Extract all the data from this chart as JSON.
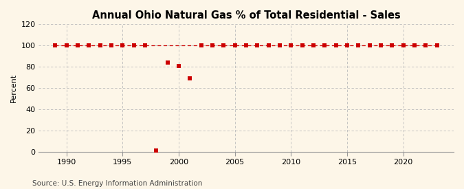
{
  "title": "Annual Ohio Natural Gas % of Total Residential - Sales",
  "ylabel": "Percent",
  "source": "Source: U.S. Energy Information Administration",
  "background_color": "#fdf6e8",
  "marker_color": "#cc0000",
  "grid_color": "#bbbbbb",
  "xlim": [
    1987.5,
    2024.5
  ],
  "ylim": [
    0,
    120
  ],
  "yticks": [
    0,
    20,
    40,
    60,
    80,
    100,
    120
  ],
  "xticks": [
    1990,
    1995,
    2000,
    2005,
    2010,
    2015,
    2020
  ],
  "years": [
    1989,
    1990,
    1991,
    1992,
    1993,
    1994,
    1995,
    1996,
    1997,
    1998,
    1999,
    2000,
    2001,
    2002,
    2003,
    2004,
    2005,
    2006,
    2007,
    2008,
    2009,
    2010,
    2011,
    2012,
    2013,
    2014,
    2015,
    2016,
    2017,
    2018,
    2019,
    2020,
    2021,
    2022,
    2023
  ],
  "values": [
    100,
    100,
    100,
    100,
    100,
    100,
    100,
    100,
    100,
    1,
    84,
    81,
    69,
    100,
    100,
    100,
    100,
    100,
    100,
    100,
    100,
    100,
    100,
    100,
    100,
    100,
    100,
    100,
    100,
    100,
    100,
    100,
    100,
    100,
    100
  ],
  "line_years": [
    1989,
    1990,
    1991,
    1992,
    1993,
    1994,
    1995,
    1996,
    1997,
    2002,
    2003,
    2004,
    2005,
    2006,
    2007,
    2008,
    2009,
    2010,
    2011,
    2012,
    2013,
    2014,
    2015,
    2016,
    2017,
    2018,
    2019,
    2020,
    2021,
    2022,
    2023
  ],
  "line_values": [
    100,
    100,
    100,
    100,
    100,
    100,
    100,
    100,
    100,
    100,
    100,
    100,
    100,
    100,
    100,
    100,
    100,
    100,
    100,
    100,
    100,
    100,
    100,
    100,
    100,
    100,
    100,
    100,
    100,
    100,
    100
  ],
  "outlier_years": [
    1998,
    1999,
    2000,
    2001
  ],
  "outlier_values": [
    1,
    84,
    81,
    69
  ],
  "title_fontsize": 10.5,
  "label_fontsize": 8,
  "tick_fontsize": 8,
  "source_fontsize": 7.5,
  "marker_size": 22,
  "line_width": 0.9,
  "dash_pattern": [
    4,
    3
  ]
}
